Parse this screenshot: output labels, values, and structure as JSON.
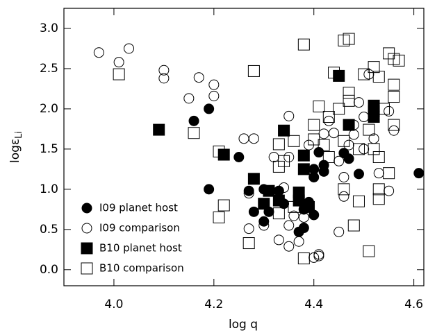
{
  "chart_data": {
    "type": "scatter",
    "xlabel": "log q",
    "ylabel": "logε",
    "ylabel_sub": "Li",
    "xlim": [
      3.9,
      4.62
    ],
    "ylim": [
      -0.2,
      3.25
    ],
    "xticks": [
      {
        "value": 4.0,
        "label": "4.0"
      },
      {
        "value": 4.2,
        "label": "4.2"
      },
      {
        "value": 4.4,
        "label": "4.4"
      },
      {
        "value": 4.6,
        "label": "4.6"
      }
    ],
    "yticks": [
      {
        "value": 0,
        "label": "0.0"
      },
      {
        "value": 0.5,
        "label": "0.5"
      },
      {
        "value": 1,
        "label": "1.0"
      },
      {
        "value": 1.5,
        "label": "1.5"
      },
      {
        "value": 2,
        "label": "2.0"
      },
      {
        "value": 2.5,
        "label": "2.5"
      },
      {
        "value": 3,
        "label": "3.0"
      }
    ],
    "legend": "lower left",
    "series": [
      {
        "name": "I09 planet host",
        "marker": "circle",
        "filled": true,
        "color": "#000000",
        "x": [
          4.16,
          4.19,
          4.19,
          4.25,
          4.27,
          4.28,
          4.3,
          4.3,
          4.31,
          4.33,
          4.34,
          4.37,
          4.38,
          4.38,
          4.39,
          4.4,
          4.4,
          4.41,
          4.4,
          4.42,
          4.42,
          4.46,
          4.49,
          4.47,
          4.61
        ],
        "y": [
          1.85,
          2.0,
          1.0,
          1.4,
          0.98,
          0.72,
          1.0,
          0.6,
          0.72,
          0.98,
          0.82,
          0.47,
          0.52,
          0.75,
          0.84,
          1.25,
          1.15,
          1.46,
          0.68,
          1.3,
          1.22,
          1.45,
          1.19,
          1.38,
          1.2
        ]
      },
      {
        "name": "I09 comparison",
        "marker": "circle",
        "filled": false,
        "color": "#000000",
        "x": [
          3.97,
          4.01,
          4.03,
          4.1,
          4.1,
          4.15,
          4.17,
          4.2,
          4.2,
          4.26,
          4.27,
          4.27,
          4.28,
          4.3,
          4.32,
          4.33,
          4.35,
          4.35,
          4.35,
          4.36,
          4.37,
          4.38,
          4.38,
          4.4,
          4.41,
          4.41,
          4.43,
          4.44,
          4.45,
          4.45,
          4.46,
          4.47,
          4.48,
          4.49,
          4.5,
          4.5,
          4.51,
          4.52,
          4.53,
          4.55,
          4.56,
          4.55,
          4.48,
          4.46,
          4.42,
          4.39,
          4.34,
          4.35
        ],
        "y": [
          2.7,
          2.58,
          2.75,
          2.48,
          2.38,
          2.13,
          2.39,
          2.3,
          2.16,
          1.63,
          0.95,
          0.51,
          1.63,
          0.55,
          1.4,
          0.37,
          1.4,
          1.91,
          0.29,
          0.67,
          0.35,
          0.65,
          0.75,
          0.15,
          0.19,
          0.17,
          1.85,
          1.7,
          1.35,
          0.47,
          1.15,
          1.55,
          1.8,
          2.08,
          1.5,
          1.9,
          2.43,
          1.63,
          1.2,
          1.97,
          1.73,
          0.98,
          1.68,
          0.91,
          1.69,
          1.55,
          1.02,
          0.55
        ]
      },
      {
        "name": "B10 planet host",
        "marker": "square",
        "filled": true,
        "color": "#000000",
        "x": [
          4.09,
          4.22,
          4.28,
          4.3,
          4.31,
          4.33,
          4.34,
          4.37,
          4.37,
          4.38,
          4.38,
          4.39,
          4.45,
          4.47,
          4.52,
          4.52,
          4.52
        ],
        "y": [
          1.74,
          1.43,
          1.13,
          0.82,
          0.98,
          0.86,
          1.73,
          0.96,
          0.86,
          1.42,
          1.25,
          0.78,
          2.41,
          1.8,
          1.97,
          2.04,
          1.9
        ]
      },
      {
        "name": "B10 comparison",
        "marker": "square",
        "filled": false,
        "color": "#000000",
        "x": [
          4.01,
          4.16,
          4.21,
          4.22,
          4.21,
          4.27,
          4.28,
          4.33,
          4.33,
          4.33,
          4.34,
          4.38,
          4.38,
          4.4,
          4.4,
          4.41,
          4.43,
          4.43,
          4.44,
          4.45,
          4.46,
          4.46,
          4.47,
          4.47,
          4.47,
          4.46,
          4.48,
          4.49,
          4.49,
          4.5,
          4.51,
          4.51,
          4.52,
          4.52,
          4.53,
          4.53,
          4.53,
          4.54,
          4.55,
          4.56,
          4.57,
          4.56,
          4.56,
          4.56,
          4.55,
          4.53,
          4.42,
          4.36,
          4.36
        ],
        "y": [
          2.43,
          1.7,
          1.47,
          0.8,
          0.65,
          0.33,
          2.47,
          1.56,
          1.28,
          0.7,
          1.35,
          2.8,
          0.14,
          1.8,
          1.62,
          2.03,
          1.9,
          1.4,
          2.45,
          2.0,
          1.6,
          1.0,
          2.2,
          2.1,
          2.87,
          2.85,
          0.55,
          1.5,
          0.85,
          2.43,
          0.23,
          1.74,
          1.5,
          2.52,
          1.0,
          1.4,
          2.4,
          2.0,
          2.69,
          2.62,
          2.6,
          2.3,
          2.15,
          1.8,
          1.2,
          0.88,
          1.55,
          1.6,
          0.78
        ]
      }
    ]
  }
}
